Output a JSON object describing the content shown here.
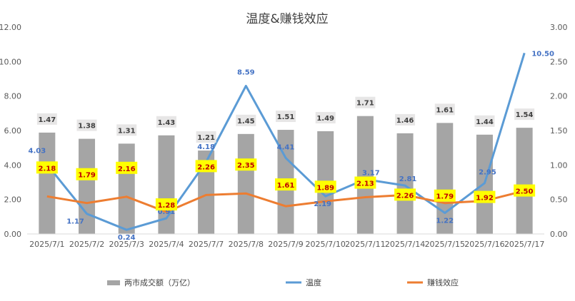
{
  "chart_data": {
    "type": "bar",
    "title": "温度&赚钱效应",
    "categories": [
      "2025/7/1",
      "2025/7/2",
      "2025/7/3",
      "2025/7/4",
      "2025/7/7",
      "2025/7/8",
      "2025/7/9",
      "2025/7/10",
      "2025/7/11",
      "2025/7/14",
      "2025/7/15",
      "2025/7/16",
      "2025/7/17"
    ],
    "series": [
      {
        "name": "两市成交额（万亿）",
        "type": "bar",
        "axis": "right",
        "color": "#A5A5A5",
        "values": [
          1.47,
          1.38,
          1.31,
          1.43,
          1.21,
          1.45,
          1.51,
          1.49,
          1.71,
          1.46,
          1.61,
          1.44,
          1.54
        ]
      },
      {
        "name": "温度",
        "type": "line",
        "axis": "left",
        "color": "#5B9BD5",
        "values": [
          4.03,
          1.17,
          0.24,
          0.91,
          4.18,
          8.59,
          4.41,
          2.19,
          3.17,
          2.81,
          1.22,
          2.95,
          10.5
        ]
      },
      {
        "name": "赚钱效应",
        "type": "line",
        "axis": "left",
        "color": "#ED7D31",
        "values": [
          2.18,
          1.79,
          2.16,
          1.28,
          2.26,
          2.35,
          1.61,
          1.89,
          2.13,
          2.26,
          1.79,
          1.92,
          2.5
        ]
      }
    ],
    "y_left": {
      "min": 0,
      "max": 12,
      "step": 2,
      "tick_labels": [
        "0.00",
        "2.00",
        "4.00",
        "6.00",
        "8.00",
        "10.00",
        "12.00"
      ]
    },
    "y_right": {
      "min": 0,
      "max": 3,
      "step": 0.5,
      "tick_labels": [
        "0.00",
        "0.50",
        "1.00",
        "1.50",
        "2.00",
        "2.50",
        "3.00"
      ]
    },
    "grid": false,
    "legend_position": "bottom",
    "colors": {
      "label_highlight": "#FFFF00",
      "earn_label_text": "#C00000",
      "temp_label_text": "#4472C4",
      "bar_label_bg": "#E7E6E6"
    }
  }
}
